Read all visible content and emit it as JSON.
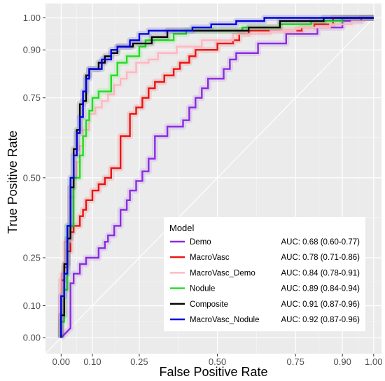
{
  "chart_data": {
    "type": "line",
    "title": "",
    "xlabel": "False Positive Rate",
    "ylabel": "True Positive Rate",
    "xlim": [
      -0.05,
      1.025
    ],
    "ylim": [
      -0.05,
      1.045
    ],
    "xticks": [
      0.0,
      0.1,
      0.25,
      0.5,
      0.75,
      0.9,
      1.0
    ],
    "xtick_labels": [
      "0.00",
      "0.10",
      "0.25",
      "0.50",
      "0.75",
      "0.90",
      "1.00"
    ],
    "yticks": [
      0.0,
      0.1,
      0.25,
      0.5,
      0.75,
      0.9,
      1.0
    ],
    "ytick_labels": [
      "0.00",
      "0.10",
      "0.25",
      "0.50",
      "0.75",
      "0.90",
      "1.00"
    ],
    "grid": true,
    "background": "#ebebeb",
    "diagonal_reference": true,
    "legend": {
      "title": "Model",
      "position": "bottom-right"
    },
    "series": [
      {
        "name": "Demo",
        "auc": "AUC: 0.68 (0.60-0.77)",
        "color": "#8a2be2",
        "points": [
          [
            0,
            0
          ],
          [
            0.01,
            0.01
          ],
          [
            0.02,
            0.02
          ],
          [
            0.03,
            0.03
          ],
          [
            0.03,
            0.17
          ],
          [
            0.04,
            0.17
          ],
          [
            0.04,
            0.2
          ],
          [
            0.06,
            0.2
          ],
          [
            0.06,
            0.23
          ],
          [
            0.08,
            0.23
          ],
          [
            0.08,
            0.25
          ],
          [
            0.12,
            0.25
          ],
          [
            0.12,
            0.28
          ],
          [
            0.14,
            0.28
          ],
          [
            0.14,
            0.3
          ],
          [
            0.15,
            0.3
          ],
          [
            0.15,
            0.32
          ],
          [
            0.17,
            0.32
          ],
          [
            0.17,
            0.35
          ],
          [
            0.19,
            0.35
          ],
          [
            0.19,
            0.4
          ],
          [
            0.21,
            0.4
          ],
          [
            0.21,
            0.43
          ],
          [
            0.22,
            0.43
          ],
          [
            0.22,
            0.46
          ],
          [
            0.24,
            0.46
          ],
          [
            0.24,
            0.49
          ],
          [
            0.26,
            0.49
          ],
          [
            0.26,
            0.52
          ],
          [
            0.28,
            0.52
          ],
          [
            0.28,
            0.56
          ],
          [
            0.3,
            0.56
          ],
          [
            0.3,
            0.63
          ],
          [
            0.34,
            0.63
          ],
          [
            0.34,
            0.66
          ],
          [
            0.39,
            0.66
          ],
          [
            0.39,
            0.68
          ],
          [
            0.41,
            0.68
          ],
          [
            0.41,
            0.72
          ],
          [
            0.43,
            0.72
          ],
          [
            0.43,
            0.75
          ],
          [
            0.45,
            0.75
          ],
          [
            0.45,
            0.78
          ],
          [
            0.47,
            0.78
          ],
          [
            0.47,
            0.81
          ],
          [
            0.52,
            0.81
          ],
          [
            0.52,
            0.84
          ],
          [
            0.54,
            0.84
          ],
          [
            0.54,
            0.87
          ],
          [
            0.56,
            0.87
          ],
          [
            0.56,
            0.89
          ],
          [
            0.63,
            0.89
          ],
          [
            0.63,
            0.92
          ],
          [
            0.72,
            0.92
          ],
          [
            0.72,
            0.95
          ],
          [
            0.82,
            0.95
          ],
          [
            0.82,
            0.97
          ],
          [
            0.9,
            0.97
          ],
          [
            0.9,
            0.99
          ],
          [
            0.96,
            0.99
          ],
          [
            0.96,
            1.0
          ],
          [
            1,
            1
          ]
        ]
      },
      {
        "name": "MacroVasc",
        "auc": "AUC: 0.78 (0.71-0.86)",
        "color": "#ee1111",
        "points": [
          [
            0,
            0
          ],
          [
            0,
            0.18
          ],
          [
            0.01,
            0.18
          ],
          [
            0.01,
            0.22
          ],
          [
            0.02,
            0.22
          ],
          [
            0.02,
            0.27
          ],
          [
            0.03,
            0.27
          ],
          [
            0.03,
            0.33
          ],
          [
            0.04,
            0.33
          ],
          [
            0.04,
            0.35
          ],
          [
            0.06,
            0.35
          ],
          [
            0.06,
            0.38
          ],
          [
            0.07,
            0.38
          ],
          [
            0.07,
            0.4
          ],
          [
            0.08,
            0.4
          ],
          [
            0.08,
            0.43
          ],
          [
            0.1,
            0.43
          ],
          [
            0.1,
            0.46
          ],
          [
            0.12,
            0.46
          ],
          [
            0.12,
            0.48
          ],
          [
            0.14,
            0.48
          ],
          [
            0.14,
            0.5
          ],
          [
            0.16,
            0.5
          ],
          [
            0.16,
            0.53
          ],
          [
            0.19,
            0.53
          ],
          [
            0.19,
            0.63
          ],
          [
            0.22,
            0.63
          ],
          [
            0.22,
            0.7
          ],
          [
            0.24,
            0.7
          ],
          [
            0.24,
            0.72
          ],
          [
            0.26,
            0.72
          ],
          [
            0.26,
            0.75
          ],
          [
            0.28,
            0.75
          ],
          [
            0.28,
            0.78
          ],
          [
            0.3,
            0.78
          ],
          [
            0.3,
            0.8
          ],
          [
            0.33,
            0.8
          ],
          [
            0.33,
            0.82
          ],
          [
            0.36,
            0.82
          ],
          [
            0.36,
            0.84
          ],
          [
            0.38,
            0.84
          ],
          [
            0.38,
            0.86
          ],
          [
            0.41,
            0.86
          ],
          [
            0.41,
            0.88
          ],
          [
            0.43,
            0.88
          ],
          [
            0.43,
            0.9
          ],
          [
            0.5,
            0.9
          ],
          [
            0.5,
            0.92
          ],
          [
            0.55,
            0.92
          ],
          [
            0.55,
            0.93
          ],
          [
            0.57,
            0.93
          ],
          [
            0.57,
            0.95
          ],
          [
            0.6,
            0.95
          ],
          [
            0.6,
            0.96
          ],
          [
            0.77,
            0.96
          ],
          [
            0.77,
            0.97
          ],
          [
            0.81,
            0.97
          ],
          [
            0.81,
            0.98
          ],
          [
            0.87,
            0.98
          ],
          [
            0.87,
            1.0
          ],
          [
            1,
            1
          ]
        ]
      },
      {
        "name": "MacroVasc_Demo",
        "auc": "AUC: 0.84 (0.78-0.91)",
        "color": "#ffb6c1",
        "points": [
          [
            0,
            0
          ],
          [
            0,
            0.2
          ],
          [
            0.01,
            0.2
          ],
          [
            0.01,
            0.3
          ],
          [
            0.03,
            0.3
          ],
          [
            0.03,
            0.44
          ],
          [
            0.04,
            0.44
          ],
          [
            0.04,
            0.5
          ],
          [
            0.05,
            0.5
          ],
          [
            0.05,
            0.55
          ],
          [
            0.06,
            0.55
          ],
          [
            0.06,
            0.6
          ],
          [
            0.07,
            0.6
          ],
          [
            0.07,
            0.65
          ],
          [
            0.09,
            0.65
          ],
          [
            0.09,
            0.7
          ],
          [
            0.11,
            0.7
          ],
          [
            0.11,
            0.72
          ],
          [
            0.13,
            0.72
          ],
          [
            0.13,
            0.74
          ],
          [
            0.15,
            0.74
          ],
          [
            0.15,
            0.76
          ],
          [
            0.17,
            0.76
          ],
          [
            0.17,
            0.79
          ],
          [
            0.19,
            0.79
          ],
          [
            0.19,
            0.81
          ],
          [
            0.21,
            0.81
          ],
          [
            0.21,
            0.83
          ],
          [
            0.24,
            0.83
          ],
          [
            0.24,
            0.86
          ],
          [
            0.28,
            0.86
          ],
          [
            0.28,
            0.87
          ],
          [
            0.31,
            0.87
          ],
          [
            0.31,
            0.89
          ],
          [
            0.37,
            0.89
          ],
          [
            0.37,
            0.91
          ],
          [
            0.45,
            0.91
          ],
          [
            0.45,
            0.93
          ],
          [
            0.55,
            0.93
          ],
          [
            0.55,
            0.95
          ],
          [
            0.67,
            0.95
          ],
          [
            0.67,
            0.96
          ],
          [
            0.75,
            0.96
          ],
          [
            0.75,
            0.97
          ],
          [
            0.86,
            0.97
          ],
          [
            0.86,
            0.98
          ],
          [
            0.93,
            0.98
          ],
          [
            0.93,
            0.99
          ],
          [
            0.97,
            0.99
          ],
          [
            0.97,
            1.0
          ],
          [
            1,
            1
          ]
        ]
      },
      {
        "name": "Nodule",
        "auc": "AUC: 0.89 (0.84-0.94)",
        "color": "#22dd22",
        "points": [
          [
            0,
            0
          ],
          [
            0,
            0.05
          ],
          [
            0.01,
            0.05
          ],
          [
            0.01,
            0.15
          ],
          [
            0.02,
            0.15
          ],
          [
            0.02,
            0.35
          ],
          [
            0.04,
            0.35
          ],
          [
            0.04,
            0.5
          ],
          [
            0.06,
            0.5
          ],
          [
            0.06,
            0.57
          ],
          [
            0.07,
            0.57
          ],
          [
            0.07,
            0.63
          ],
          [
            0.08,
            0.63
          ],
          [
            0.08,
            0.68
          ],
          [
            0.09,
            0.68
          ],
          [
            0.09,
            0.71
          ],
          [
            0.1,
            0.71
          ],
          [
            0.1,
            0.75
          ],
          [
            0.12,
            0.75
          ],
          [
            0.12,
            0.77
          ],
          [
            0.16,
            0.77
          ],
          [
            0.16,
            0.82
          ],
          [
            0.18,
            0.82
          ],
          [
            0.18,
            0.86
          ],
          [
            0.21,
            0.86
          ],
          [
            0.21,
            0.88
          ],
          [
            0.25,
            0.88
          ],
          [
            0.25,
            0.91
          ],
          [
            0.27,
            0.91
          ],
          [
            0.27,
            0.93
          ],
          [
            0.36,
            0.93
          ],
          [
            0.36,
            0.95
          ],
          [
            0.4,
            0.95
          ],
          [
            0.4,
            0.96
          ],
          [
            0.58,
            0.96
          ],
          [
            0.58,
            0.97
          ],
          [
            0.7,
            0.97
          ],
          [
            0.7,
            0.98
          ],
          [
            0.8,
            0.98
          ],
          [
            0.8,
            0.99
          ],
          [
            0.9,
            0.99
          ],
          [
            0.9,
            1.0
          ],
          [
            1,
            1
          ]
        ]
      },
      {
        "name": "Composite",
        "auc": "AUC: 0.91 (0.87-0.96)",
        "color": "#000000",
        "points": [
          [
            0,
            0
          ],
          [
            0,
            0.07
          ],
          [
            0.01,
            0.07
          ],
          [
            0.01,
            0.23
          ],
          [
            0.02,
            0.23
          ],
          [
            0.02,
            0.31
          ],
          [
            0.03,
            0.31
          ],
          [
            0.03,
            0.47
          ],
          [
            0.04,
            0.47
          ],
          [
            0.04,
            0.59
          ],
          [
            0.05,
            0.59
          ],
          [
            0.05,
            0.65
          ],
          [
            0.06,
            0.65
          ],
          [
            0.06,
            0.73
          ],
          [
            0.07,
            0.73
          ],
          [
            0.07,
            0.74
          ],
          [
            0.08,
            0.74
          ],
          [
            0.08,
            0.82
          ],
          [
            0.09,
            0.82
          ],
          [
            0.09,
            0.84
          ],
          [
            0.12,
            0.84
          ],
          [
            0.12,
            0.86
          ],
          [
            0.14,
            0.86
          ],
          [
            0.14,
            0.88
          ],
          [
            0.16,
            0.88
          ],
          [
            0.16,
            0.89
          ],
          [
            0.18,
            0.89
          ],
          [
            0.18,
            0.91
          ],
          [
            0.23,
            0.91
          ],
          [
            0.23,
            0.92
          ],
          [
            0.29,
            0.92
          ],
          [
            0.29,
            0.94
          ],
          [
            0.34,
            0.94
          ],
          [
            0.34,
            0.96
          ],
          [
            0.6,
            0.96
          ],
          [
            0.6,
            0.97
          ],
          [
            0.7,
            0.97
          ],
          [
            0.7,
            0.99
          ],
          [
            0.84,
            0.99
          ],
          [
            0.84,
            1.0
          ],
          [
            1,
            1
          ]
        ]
      },
      {
        "name": "MacroVasc_Nodule",
        "auc": "AUC: 0.92 (0.87-0.96)",
        "color": "#0000dd",
        "points": [
          [
            0,
            0
          ],
          [
            0,
            0.13
          ],
          [
            0.01,
            0.13
          ],
          [
            0.01,
            0.2
          ],
          [
            0.02,
            0.2
          ],
          [
            0.02,
            0.35
          ],
          [
            0.03,
            0.35
          ],
          [
            0.03,
            0.5
          ],
          [
            0.04,
            0.5
          ],
          [
            0.04,
            0.57
          ],
          [
            0.05,
            0.57
          ],
          [
            0.05,
            0.64
          ],
          [
            0.06,
            0.64
          ],
          [
            0.06,
            0.69
          ],
          [
            0.07,
            0.69
          ],
          [
            0.07,
            0.77
          ],
          [
            0.08,
            0.77
          ],
          [
            0.08,
            0.81
          ],
          [
            0.09,
            0.81
          ],
          [
            0.09,
            0.84
          ],
          [
            0.13,
            0.84
          ],
          [
            0.13,
            0.87
          ],
          [
            0.16,
            0.87
          ],
          [
            0.16,
            0.9
          ],
          [
            0.18,
            0.9
          ],
          [
            0.18,
            0.91
          ],
          [
            0.22,
            0.91
          ],
          [
            0.22,
            0.93
          ],
          [
            0.25,
            0.93
          ],
          [
            0.25,
            0.95
          ],
          [
            0.28,
            0.95
          ],
          [
            0.28,
            0.96
          ],
          [
            0.42,
            0.96
          ],
          [
            0.42,
            0.97
          ],
          [
            0.48,
            0.97
          ],
          [
            0.48,
            0.98
          ],
          [
            0.56,
            0.98
          ],
          [
            0.56,
            0.99
          ],
          [
            0.65,
            0.99
          ],
          [
            0.65,
            1.0
          ],
          [
            1,
            1
          ]
        ]
      }
    ]
  }
}
